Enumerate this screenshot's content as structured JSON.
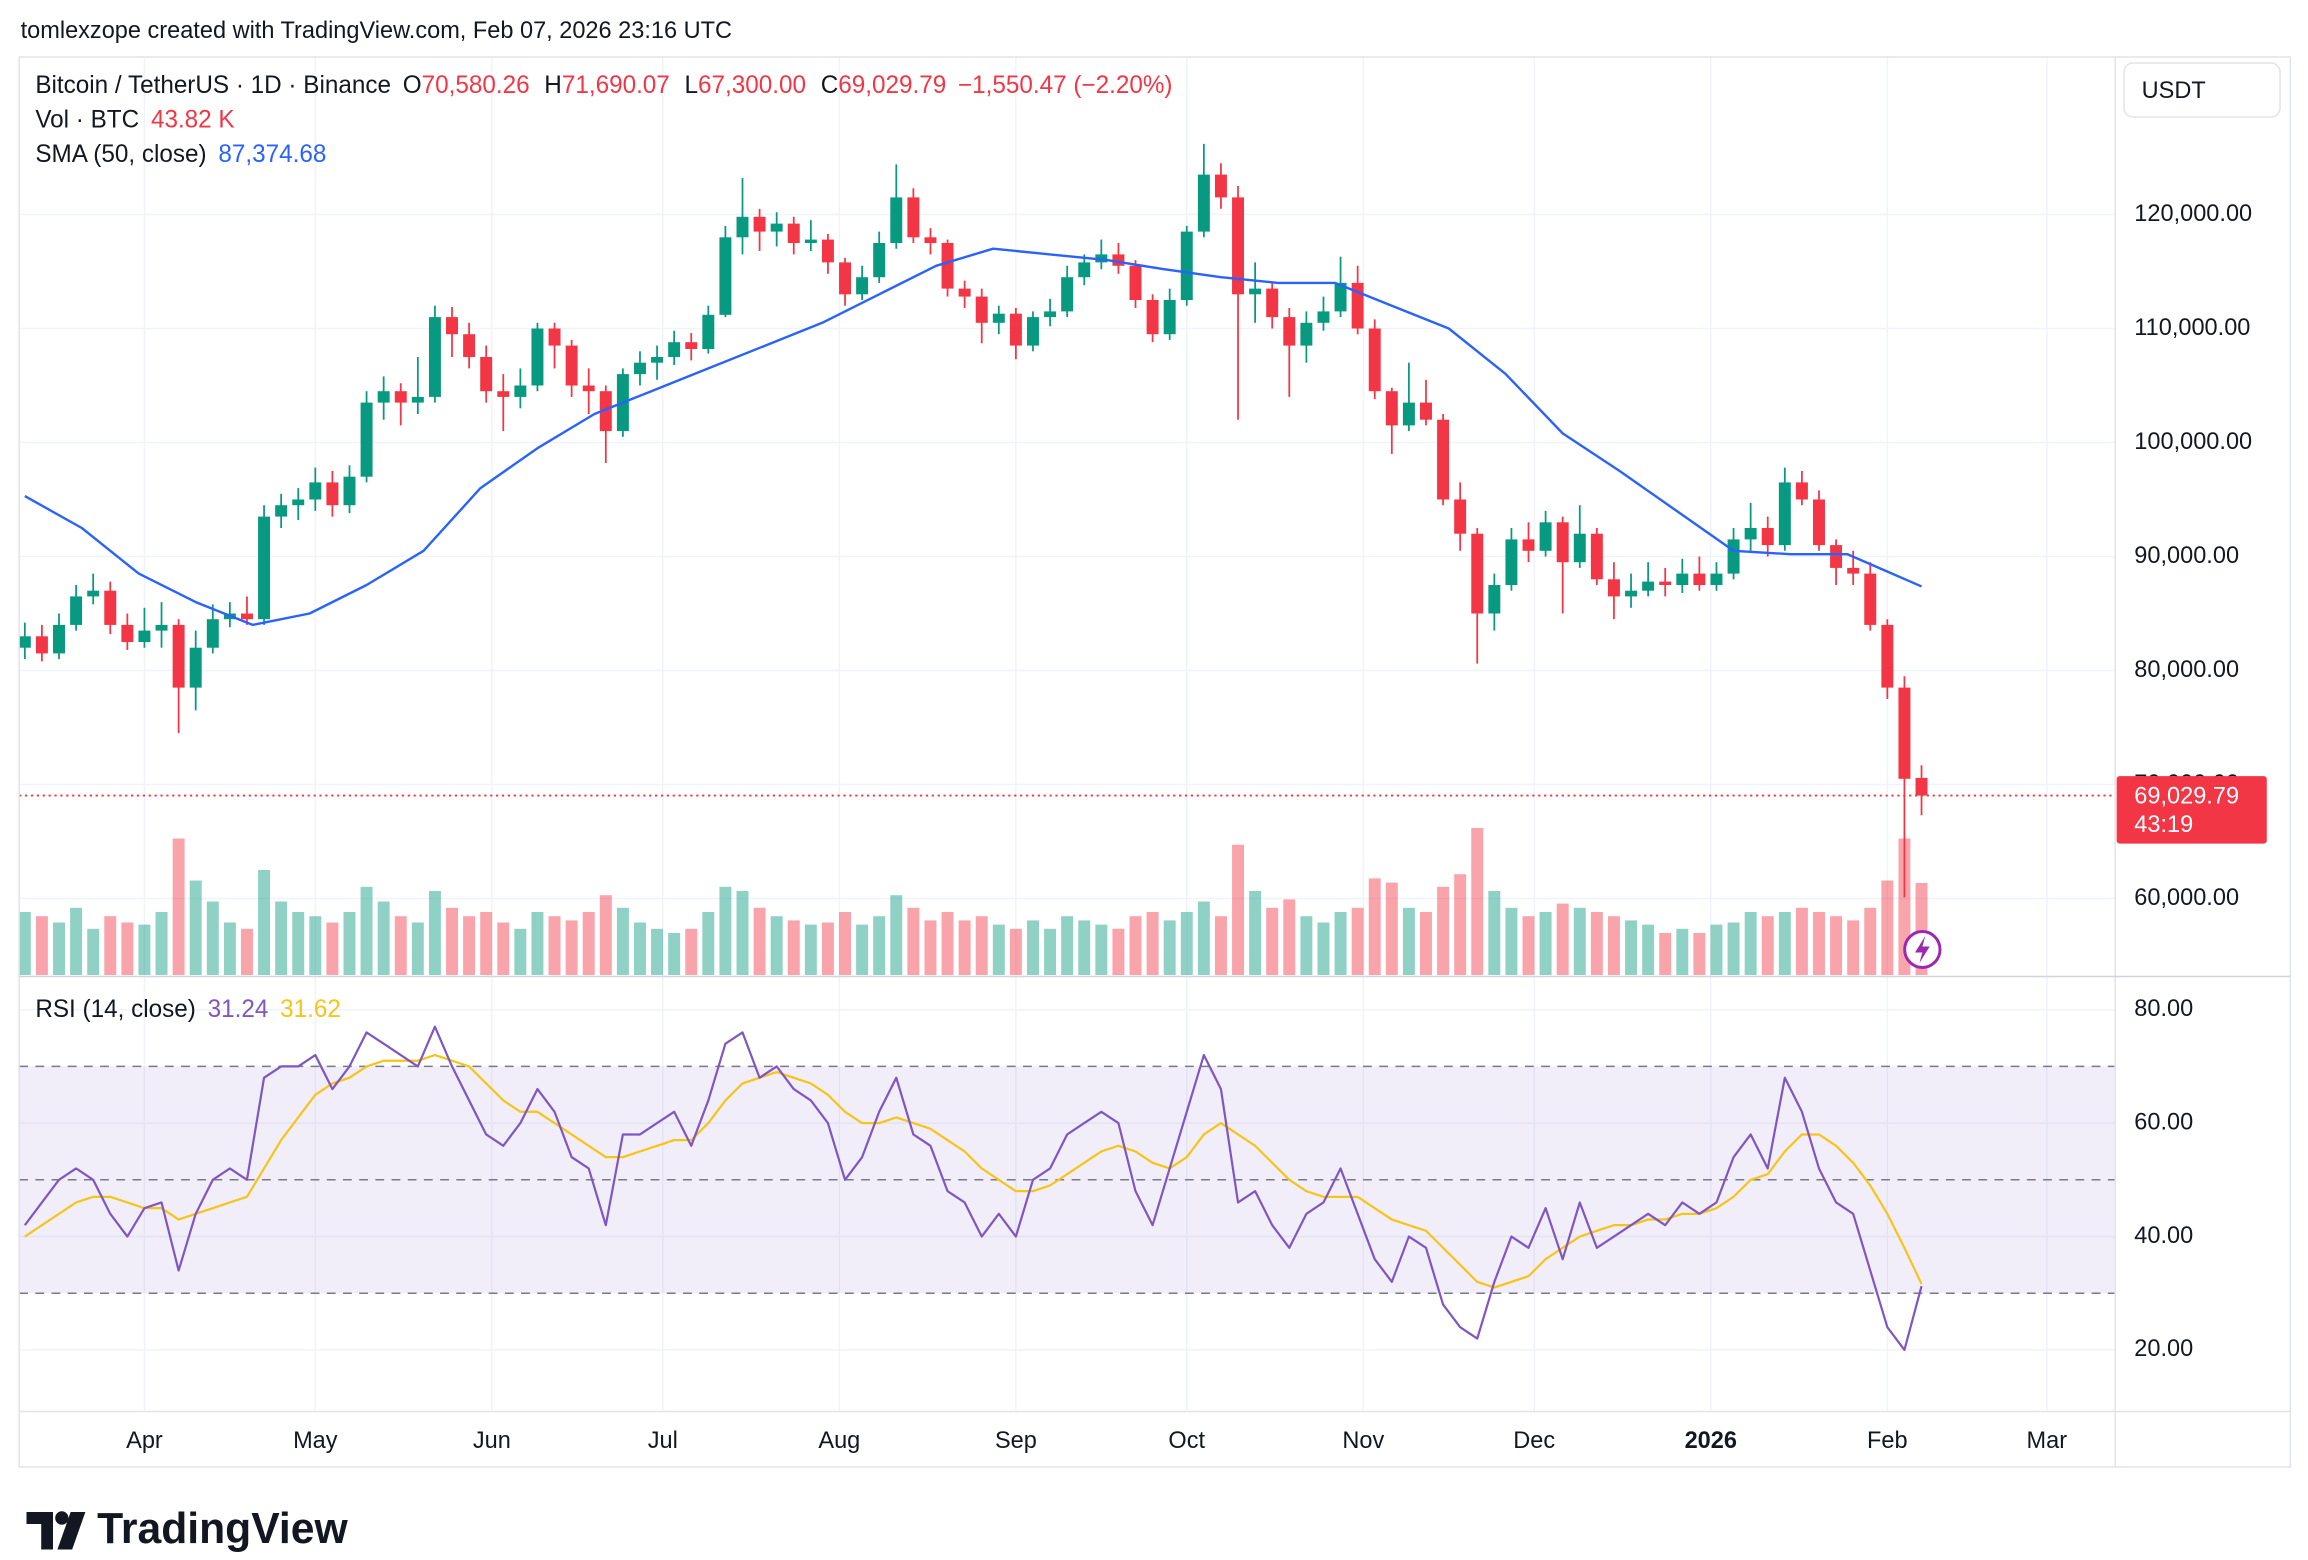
{
  "attribution": "tomlexzope created with TradingView.com, Feb 07, 2026 23:16 UTC",
  "currency": "USDT",
  "logo": "TradingView",
  "chart_data": {
    "type": "candlestick",
    "symbol": "Bitcoin / TetherUS · 1D · Binance",
    "ohlc_legend": [
      {
        "key": "O",
        "value": 70580.26,
        "label": "70,580.26"
      },
      {
        "key": "H",
        "value": 71690.07,
        "label": "71,690.07"
      },
      {
        "key": "L",
        "value": 67300.0,
        "label": "67,300.00"
      },
      {
        "key": "C",
        "value": 69029.79,
        "label": "69,029.79"
      }
    ],
    "change_label": "−1,550.47 (−2.20%)",
    "xlim": [
      -1,
      367
    ],
    "xticks": [
      {
        "value": 21,
        "label": "Apr"
      },
      {
        "value": 51,
        "label": "May"
      },
      {
        "value": 82,
        "label": "Jun"
      },
      {
        "value": 112,
        "label": "Jul"
      },
      {
        "value": 143,
        "label": "Aug"
      },
      {
        "value": 174,
        "label": "Sep"
      },
      {
        "value": 204,
        "label": "Oct"
      },
      {
        "value": 235,
        "label": "Nov"
      },
      {
        "value": 265,
        "label": "Dec"
      },
      {
        "value": 296,
        "label": "2026"
      },
      {
        "value": 327,
        "label": "Feb"
      },
      {
        "value": 355,
        "label": "Mar"
      }
    ],
    "ylim": [
      53290,
      133816
    ],
    "yticks": [
      {
        "value": 60000,
        "label": "60,000.00"
      },
      {
        "value": 70000,
        "label": "70,000.00"
      },
      {
        "value": 80000,
        "label": "80,000.00"
      },
      {
        "value": 90000,
        "label": "90,000.00"
      },
      {
        "value": 100000,
        "label": "100,000.00"
      },
      {
        "value": 110000,
        "label": "110,000.00"
      },
      {
        "value": 120000,
        "label": "120,000.00"
      }
    ],
    "grid": true,
    "up_color": "#089981",
    "down_color": "#f23645",
    "x": [
      0,
      3,
      6,
      9,
      12,
      15,
      18,
      21,
      24,
      27,
      30,
      33,
      36,
      39,
      42,
      45,
      48,
      51,
      54,
      57,
      60,
      63,
      66,
      69,
      72,
      75,
      78,
      81,
      84,
      87,
      90,
      93,
      96,
      99,
      102,
      105,
      108,
      111,
      114,
      117,
      120,
      123,
      126,
      129,
      132,
      135,
      138,
      141,
      144,
      147,
      150,
      153,
      156,
      159,
      162,
      165,
      168,
      171,
      174,
      177,
      180,
      183,
      186,
      189,
      192,
      195,
      198,
      201,
      204,
      207,
      210,
      213,
      216,
      219,
      222,
      225,
      228,
      231,
      234,
      237,
      240,
      243,
      246,
      249,
      252,
      255,
      258,
      261,
      264,
      267,
      270,
      273,
      276,
      279,
      282,
      285,
      288,
      291,
      294,
      297,
      300,
      303,
      306,
      309,
      312,
      315,
      318,
      321,
      324,
      327,
      330,
      333
    ],
    "ohlc": [
      [
        82000,
        84200,
        81000,
        83000
      ],
      [
        83000,
        84000,
        80800,
        81500
      ],
      [
        81500,
        85000,
        81000,
        84000
      ],
      [
        84000,
        87500,
        83500,
        86500
      ],
      [
        86500,
        88500,
        85800,
        87000
      ],
      [
        87000,
        87800,
        83200,
        84000
      ],
      [
        84000,
        85000,
        81800,
        82500
      ],
      [
        82500,
        85500,
        82000,
        83500
      ],
      [
        83500,
        86000,
        82000,
        84000
      ],
      [
        84000,
        84500,
        74500,
        78500
      ],
      [
        78500,
        83500,
        76500,
        82000
      ],
      [
        82000,
        85800,
        81500,
        84500
      ],
      [
        84500,
        86000,
        83800,
        85000
      ],
      [
        85000,
        86500,
        84000,
        84500
      ],
      [
        84500,
        94500,
        84000,
        93500
      ],
      [
        93500,
        95500,
        92500,
        94500
      ],
      [
        94500,
        96000,
        93200,
        95000
      ],
      [
        95000,
        97800,
        94000,
        96500
      ],
      [
        96500,
        97500,
        93500,
        94500
      ],
      [
        94500,
        98000,
        93800,
        97000
      ],
      [
        97000,
        104500,
        96500,
        103500
      ],
      [
        103500,
        105800,
        102000,
        104500
      ],
      [
        104500,
        105200,
        101500,
        103500
      ],
      [
        103500,
        107500,
        102500,
        104000
      ],
      [
        104000,
        112000,
        103500,
        111000
      ],
      [
        111000,
        111900,
        107500,
        109500
      ],
      [
        109500,
        110500,
        106500,
        107500
      ],
      [
        107500,
        108500,
        103500,
        104500
      ],
      [
        104500,
        106000,
        101000,
        104000
      ],
      [
        104000,
        106500,
        103000,
        105000
      ],
      [
        105000,
        110500,
        104500,
        110000
      ],
      [
        110000,
        110500,
        106500,
        108500
      ],
      [
        108500,
        109000,
        104000,
        105000
      ],
      [
        105000,
        106500,
        102500,
        104500
      ],
      [
        104500,
        105000,
        98200,
        101000
      ],
      [
        101000,
        106500,
        100500,
        106000
      ],
      [
        106000,
        108000,
        105000,
        107000
      ],
      [
        107000,
        108500,
        105500,
        107500
      ],
      [
        107500,
        109800,
        106800,
        108800
      ],
      [
        108800,
        109600,
        107200,
        108200
      ],
      [
        108200,
        112000,
        107800,
        111200
      ],
      [
        111200,
        119000,
        111000,
        118000
      ],
      [
        118000,
        123200,
        116500,
        119800
      ],
      [
        119800,
        120500,
        116800,
        118500
      ],
      [
        118500,
        120200,
        117200,
        119200
      ],
      [
        119200,
        119800,
        116500,
        117500
      ],
      [
        117500,
        119500,
        116800,
        117800
      ],
      [
        117800,
        118300,
        114800,
        115800
      ],
      [
        115800,
        116200,
        112000,
        113000
      ],
      [
        113000,
        115500,
        112500,
        114500
      ],
      [
        114500,
        118500,
        114000,
        117500
      ],
      [
        117500,
        124400,
        117000,
        121500
      ],
      [
        121500,
        122300,
        117500,
        118000
      ],
      [
        118000,
        118800,
        116500,
        117500
      ],
      [
        117500,
        117800,
        112800,
        113500
      ],
      [
        113500,
        114200,
        111800,
        112800
      ],
      [
        112800,
        113500,
        108700,
        110500
      ],
      [
        110500,
        112000,
        109500,
        111300
      ],
      [
        111300,
        111800,
        107300,
        108500
      ],
      [
        108500,
        111500,
        108000,
        111000
      ],
      [
        111000,
        112600,
        110200,
        111500
      ],
      [
        111500,
        115500,
        111000,
        114500
      ],
      [
        114500,
        116500,
        113800,
        115800
      ],
      [
        115800,
        117800,
        115200,
        116500
      ],
      [
        116500,
        117500,
        114800,
        115500
      ],
      [
        115500,
        116000,
        111800,
        112500
      ],
      [
        112500,
        113000,
        108800,
        109500
      ],
      [
        109500,
        113500,
        109000,
        112500
      ],
      [
        112500,
        119000,
        112000,
        118500
      ],
      [
        118500,
        126200,
        118000,
        123500
      ],
      [
        123500,
        124500,
        120500,
        121500
      ],
      [
        121500,
        122500,
        102000,
        113000
      ],
      [
        113000,
        115800,
        110500,
        113500
      ],
      [
        113500,
        114000,
        110000,
        111000
      ],
      [
        111000,
        111800,
        104000,
        108500
      ],
      [
        108500,
        111500,
        107000,
        110500
      ],
      [
        110500,
        112800,
        109800,
        111500
      ],
      [
        111500,
        116300,
        111000,
        114000
      ],
      [
        114000,
        115500,
        109500,
        110000
      ],
      [
        110000,
        110800,
        103800,
        104500
      ],
      [
        104500,
        104800,
        99000,
        101500
      ],
      [
        101500,
        107000,
        101000,
        103500
      ],
      [
        103500,
        105500,
        101500,
        102000
      ],
      [
        102000,
        102500,
        94500,
        95000
      ],
      [
        95000,
        96500,
        90500,
        92000
      ],
      [
        92000,
        92500,
        80600,
        85000
      ],
      [
        85000,
        88500,
        83500,
        87500
      ],
      [
        87500,
        92500,
        87000,
        91500
      ],
      [
        91500,
        93000,
        89500,
        90500
      ],
      [
        90500,
        94000,
        90000,
        93000
      ],
      [
        93000,
        93500,
        85000,
        89500
      ],
      [
        89500,
        94500,
        89000,
        92000
      ],
      [
        92000,
        92500,
        87500,
        88000
      ],
      [
        88000,
        89500,
        84500,
        86500
      ],
      [
        86500,
        88500,
        85500,
        87000
      ],
      [
        87000,
        89500,
        86500,
        87800
      ],
      [
        87800,
        89000,
        86500,
        87500
      ],
      [
        87500,
        89800,
        86800,
        88500
      ],
      [
        88500,
        90000,
        87000,
        87500
      ],
      [
        87500,
        89500,
        87000,
        88500
      ],
      [
        88500,
        92500,
        88000,
        91500
      ],
      [
        91500,
        94700,
        90500,
        92500
      ],
      [
        92500,
        93500,
        90000,
        91000
      ],
      [
        91000,
        97800,
        90500,
        96500
      ],
      [
        96500,
        97500,
        94500,
        95000
      ],
      [
        95000,
        95800,
        90500,
        91000
      ],
      [
        91000,
        91500,
        87500,
        89000
      ],
      [
        89000,
        90500,
        87500,
        88500
      ],
      [
        88500,
        89500,
        83500,
        84000
      ],
      [
        84000,
        84500,
        77500,
        78500
      ],
      [
        78500,
        79500,
        60100,
        70500
      ],
      [
        70580.26,
        71690.07,
        67300,
        69029.79
      ]
    ],
    "price_line": {
      "value": 69029.79,
      "label": "69,029.79",
      "countdown": "43:19",
      "color": "#f23645"
    },
    "volume": {
      "name": "Vol · BTC",
      "legend_value": {
        "value": 43.82,
        "label": "43.82 K"
      },
      "ylim": [
        0,
        80
      ],
      "values": [
        30,
        28,
        25,
        32,
        22,
        28,
        25,
        24,
        30,
        65,
        45,
        35,
        25,
        22,
        50,
        35,
        30,
        28,
        25,
        30,
        42,
        35,
        28,
        25,
        40,
        32,
        28,
        30,
        25,
        22,
        30,
        28,
        26,
        30,
        38,
        32,
        25,
        22,
        20,
        22,
        30,
        42,
        40,
        32,
        28,
        26,
        24,
        25,
        30,
        24,
        28,
        38,
        32,
        26,
        30,
        26,
        28,
        24,
        22,
        26,
        22,
        28,
        26,
        24,
        22,
        28,
        30,
        26,
        30,
        35,
        28,
        62,
        40,
        32,
        36,
        28,
        25,
        30,
        32,
        46,
        44,
        32,
        30,
        42,
        48,
        70,
        40,
        32,
        28,
        30,
        34,
        32,
        30,
        28,
        26,
        24,
        20,
        22,
        20,
        24,
        25,
        30,
        28,
        30,
        32,
        30,
        28,
        26,
        32,
        45,
        65,
        43.82
      ]
    },
    "sma": {
      "name": "SMA (50, close)",
      "color": "#2962ff",
      "legend_value": {
        "value": 87374.68,
        "label": "87,374.68"
      },
      "x": [
        0,
        10,
        20,
        30,
        40,
        50,
        60,
        70,
        80,
        90,
        100,
        110,
        120,
        130,
        140,
        150,
        160,
        170,
        180,
        190,
        200,
        210,
        220,
        230,
        240,
        250,
        260,
        270,
        280,
        290,
        300,
        310,
        320,
        333
      ],
      "values": [
        95300,
        92500,
        88500,
        86000,
        84000,
        85000,
        87500,
        90500,
        96000,
        99500,
        102500,
        104500,
        106500,
        108500,
        110500,
        113000,
        115500,
        117000,
        116500,
        116000,
        115200,
        114500,
        114000,
        114000,
        112000,
        110000,
        106000,
        100800,
        97500,
        94000,
        90500,
        90200,
        90200,
        87374.68
      ]
    },
    "rsi": {
      "name": "RSI (14, close)",
      "ylim": [
        9.4,
        84.8
      ],
      "yticks": [
        {
          "value": 20,
          "label": "20.00"
        },
        {
          "value": 40,
          "label": "40.00"
        },
        {
          "value": 60,
          "label": "60.00"
        },
        {
          "value": 80,
          "label": "80.00"
        }
      ],
      "levels": [
        30,
        50,
        70
      ],
      "band_color": "#7e57c2",
      "series": [
        {
          "color": "#7e57c2",
          "values": [
            42,
            46,
            50,
            52,
            50,
            44,
            40,
            45,
            46,
            34,
            44,
            50,
            52,
            50,
            68,
            70,
            70,
            72,
            66,
            70,
            76,
            74,
            72,
            70,
            77,
            70,
            64,
            58,
            56,
            60,
            66,
            62,
            54,
            52,
            42,
            58,
            58,
            60,
            62,
            56,
            64,
            74,
            76,
            68,
            70,
            66,
            64,
            60,
            50,
            54,
            62,
            68,
            58,
            56,
            48,
            46,
            40,
            44,
            40,
            50,
            52,
            58,
            60,
            62,
            60,
            48,
            42,
            52,
            62,
            72,
            66,
            46,
            48,
            42,
            38,
            44,
            46,
            52,
            44,
            36,
            32,
            40,
            38,
            28,
            24,
            22,
            32,
            40,
            38,
            45,
            36,
            46,
            38,
            40,
            42,
            44,
            42,
            46,
            44,
            46,
            54,
            58,
            52,
            68,
            62,
            52,
            46,
            44,
            34,
            24,
            20,
            31.24
          ]
        },
        {
          "color": "#f5c518",
          "values": [
            40,
            42,
            44,
            46,
            47,
            47,
            46,
            45,
            45,
            43,
            44,
            45,
            46,
            47,
            52,
            57,
            61,
            65,
            67,
            68,
            70,
            71,
            71,
            71,
            72,
            71,
            70,
            67,
            64,
            62,
            62,
            60,
            58,
            56,
            54,
            54,
            55,
            56,
            57,
            57,
            60,
            64,
            67,
            68,
            69,
            68,
            67,
            65,
            62,
            60,
            60,
            61,
            60,
            59,
            57,
            55,
            52,
            50,
            48,
            48,
            49,
            51,
            53,
            55,
            56,
            55,
            53,
            52,
            54,
            58,
            60,
            58,
            56,
            53,
            50,
            48,
            47,
            47,
            47,
            45,
            43,
            42,
            41,
            38,
            35,
            32,
            31,
            32,
            33,
            36,
            38,
            40,
            41,
            42,
            42,
            43,
            43,
            44,
            44,
            45,
            47,
            50,
            51,
            55,
            58,
            58,
            56,
            53,
            49,
            44,
            38,
            31.62
          ]
        }
      ]
    }
  }
}
